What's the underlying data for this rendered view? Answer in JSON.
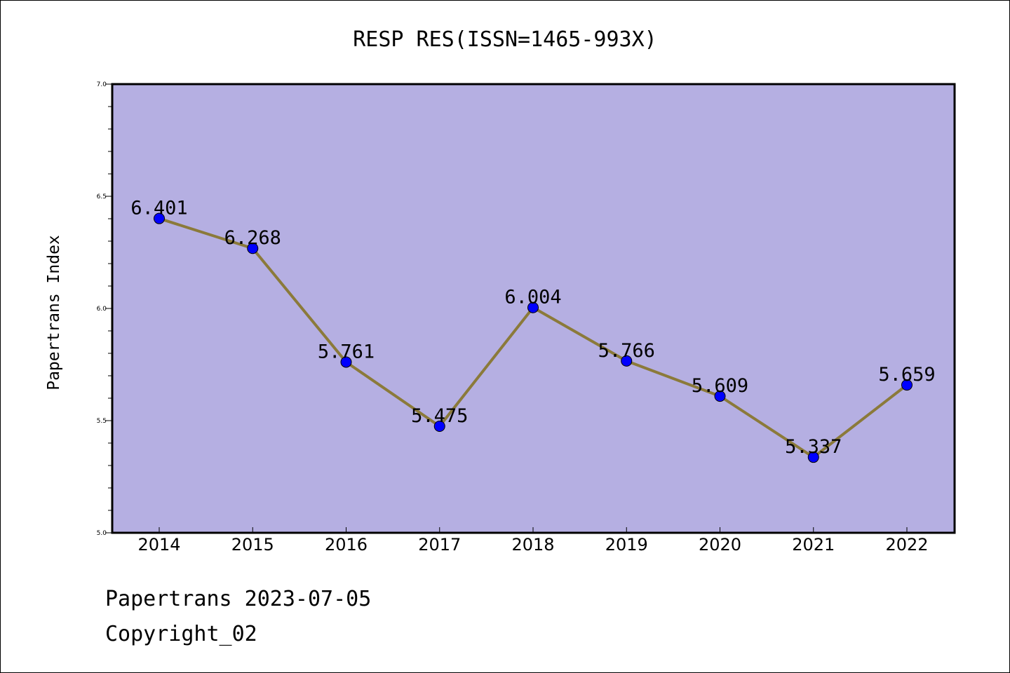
{
  "chart_data": {
    "type": "line",
    "title": "RESP RES(ISSN=1465-993X)",
    "xlabel": "",
    "ylabel": "Papertrans Index",
    "categories": [
      "2014",
      "2015",
      "2016",
      "2017",
      "2018",
      "2019",
      "2020",
      "2021",
      "2022"
    ],
    "series": [
      {
        "values": [
          6.401,
          6.268,
          5.761,
          5.475,
          6.004,
          5.766,
          5.609,
          5.337,
          5.659
        ],
        "labels": [
          "6.401",
          "6.268",
          "5.761",
          "5.475",
          "6.004",
          "5.766",
          "5.609",
          "5.337",
          "5.659"
        ],
        "line_color": "#8b7a3a",
        "marker_color": "#0000ff"
      }
    ],
    "ylim": [
      5.0,
      7.0
    ],
    "yticks": [
      "5.0",
      "5.5",
      "6.0",
      "6.5",
      "7.0"
    ],
    "grid": false,
    "plot_background": "#b5afe2"
  },
  "footer": {
    "date_line": "Papertrans 2023-07-05",
    "copyright": "Copyright_02"
  }
}
